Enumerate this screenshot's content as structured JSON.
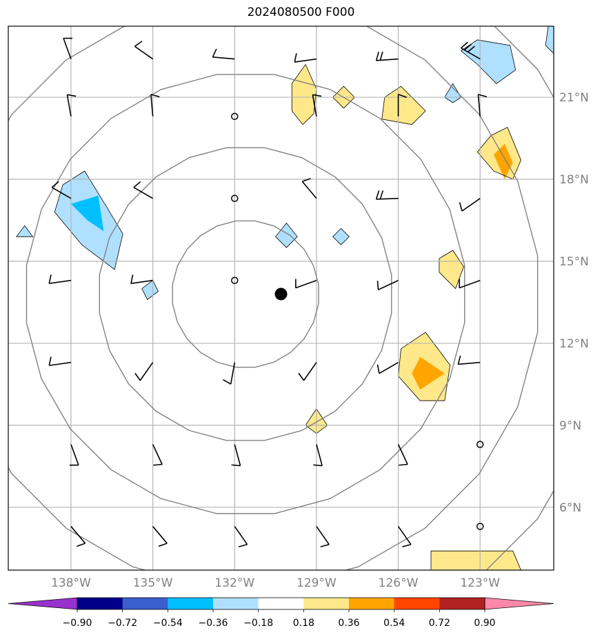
{
  "title": "2024080500 F000",
  "chart_data": {
    "type": "map",
    "title": "2024080500 F000",
    "lon_ticks": [
      "138°W",
      "135°W",
      "132°W",
      "129°W",
      "126°W",
      "123°W"
    ],
    "lon_values": [
      -138,
      -135,
      -132,
      -129,
      -126,
      -123
    ],
    "lat_ticks": [
      "21°N",
      "18°N",
      "15°N",
      "12°N",
      "9°N",
      "6°N"
    ],
    "lat_values": [
      21,
      18,
      15,
      12,
      9,
      6
    ],
    "lon_range": [
      -140.3,
      -120.3
    ],
    "lat_range": [
      3.7,
      23.6
    ],
    "grid": true,
    "storm_center": {
      "lon": -130.3,
      "lat": 13.8
    },
    "range_rings": [
      {
        "lon": -131.6,
        "lat": 13.8,
        "radius_deg": 2.7
      },
      {
        "lon": -131.6,
        "lat": 13.8,
        "radius_deg": 5.4
      },
      {
        "lon": -131.6,
        "lat": 13.8,
        "radius_deg": 8.1
      },
      {
        "lon": -131.6,
        "lat": 13.8,
        "radius_deg": 10.8
      },
      {
        "lon": -131.6,
        "lat": 13.8,
        "radius_deg": 13.5
      }
    ],
    "colorbar": {
      "levels": [
        -0.9,
        -0.72,
        -0.54,
        -0.36,
        -0.18,
        0.18,
        0.36,
        0.54,
        0.72,
        0.9
      ],
      "labels": [
        "−0.90",
        "−0.72",
        "−0.54",
        "−0.36",
        "−0.18",
        "0.18",
        "0.36",
        "0.54",
        "0.72",
        "0.90"
      ],
      "colors": [
        "#9932cc",
        "#00008b",
        "#3a5fcd",
        "#00bfff",
        "#b0e0ff",
        "#ffffff",
        "#ffe88a",
        "#ffa500",
        "#ff4500",
        "#b22222",
        "#ff88aa"
      ],
      "extend": "both"
    },
    "shaded_regions": [
      {
        "color": "#ffe88a",
        "points": [
          [
            -129.4,
            22.2
          ],
          [
            -129.0,
            21.3
          ],
          [
            -129.1,
            20.4
          ],
          [
            -129.5,
            20.0
          ],
          [
            -129.9,
            20.5
          ],
          [
            -129.9,
            21.5
          ]
        ]
      },
      {
        "color": "#ffe88a",
        "points": [
          [
            -128.0,
            21.4
          ],
          [
            -127.6,
            21.0
          ],
          [
            -128.0,
            20.6
          ],
          [
            -128.4,
            21.0
          ]
        ]
      },
      {
        "color": "#ffe88a",
        "points": [
          [
            -125.9,
            21.4
          ],
          [
            -125.0,
            20.5
          ],
          [
            -125.5,
            20.0
          ],
          [
            -126.6,
            20.2
          ],
          [
            -126.5,
            21.0
          ]
        ]
      },
      {
        "color": "#ffe88a",
        "points": [
          [
            -122.0,
            19.9
          ],
          [
            -121.5,
            18.7
          ],
          [
            -121.8,
            18.0
          ],
          [
            -122.5,
            18.3
          ],
          [
            -123.1,
            19.0
          ],
          [
            -122.6,
            19.6
          ]
        ]
      },
      {
        "color": "#ffa500",
        "points": [
          [
            -122.1,
            19.3
          ],
          [
            -121.8,
            18.6
          ],
          [
            -122.1,
            18.0
          ],
          [
            -122.5,
            18.9
          ]
        ]
      },
      {
        "color": "#ffe88a",
        "points": [
          [
            -124.0,
            15.4
          ],
          [
            -123.6,
            14.8
          ],
          [
            -123.9,
            14.0
          ],
          [
            -124.5,
            14.6
          ],
          [
            -124.5,
            15.1
          ]
        ]
      },
      {
        "color": "#ffe88a",
        "points": [
          [
            -125.0,
            12.4
          ],
          [
            -124.1,
            11.2
          ],
          [
            -124.3,
            9.9
          ],
          [
            -125.2,
            9.9
          ],
          [
            -126.0,
            10.8
          ],
          [
            -125.9,
            11.8
          ]
        ]
      },
      {
        "color": "#ffa500",
        "points": [
          [
            -125.2,
            11.5
          ],
          [
            -124.3,
            10.9
          ],
          [
            -125.2,
            10.3
          ],
          [
            -125.5,
            10.9
          ]
        ]
      },
      {
        "color": "#ffe88a",
        "points": [
          [
            -129.0,
            9.6
          ],
          [
            -128.6,
            9.0
          ],
          [
            -129.0,
            8.7
          ],
          [
            -129.4,
            9.0
          ]
        ]
      },
      {
        "color": "#ffe88a",
        "points": [
          [
            -124.8,
            4.4
          ],
          [
            -121.8,
            4.4
          ],
          [
            -121.5,
            3.7
          ],
          [
            -124.8,
            3.7
          ]
        ]
      },
      {
        "color": "#b0e0ff",
        "points": [
          [
            -137.5,
            18.3
          ],
          [
            -136.7,
            17.0
          ],
          [
            -136.1,
            16.0
          ],
          [
            -136.4,
            14.7
          ],
          [
            -137.6,
            15.6
          ],
          [
            -138.6,
            16.8
          ],
          [
            -138.3,
            17.8
          ]
        ]
      },
      {
        "color": "#00bfff",
        "points": [
          [
            -137.0,
            17.4
          ],
          [
            -136.8,
            16.1
          ],
          [
            -137.4,
            16.5
          ],
          [
            -138.0,
            17.1
          ]
        ]
      },
      {
        "color": "#b0e0ff",
        "points": [
          [
            -139.7,
            16.3
          ],
          [
            -139.4,
            15.9
          ],
          [
            -140.0,
            15.9
          ]
        ]
      },
      {
        "color": "#b0e0ff",
        "points": [
          [
            -135.0,
            14.3
          ],
          [
            -134.8,
            13.9
          ],
          [
            -135.2,
            13.6
          ],
          [
            -135.4,
            14.0
          ]
        ]
      },
      {
        "color": "#b0e0ff",
        "points": [
          [
            -130.1,
            16.4
          ],
          [
            -129.7,
            15.9
          ],
          [
            -130.1,
            15.5
          ],
          [
            -130.5,
            15.9
          ]
        ]
      },
      {
        "color": "#b0e0ff",
        "points": [
          [
            -128.1,
            16.2
          ],
          [
            -127.8,
            15.9
          ],
          [
            -128.1,
            15.6
          ],
          [
            -128.4,
            15.9
          ]
        ]
      },
      {
        "color": "#b0e0ff",
        "points": [
          [
            -124.0,
            21.5
          ],
          [
            -123.7,
            21.0
          ],
          [
            -124.0,
            20.8
          ],
          [
            -124.3,
            21.0
          ]
        ]
      },
      {
        "color": "#b0e0ff",
        "points": [
          [
            -123.1,
            23.1
          ],
          [
            -121.9,
            22.9
          ],
          [
            -121.7,
            22.0
          ],
          [
            -122.4,
            21.5
          ],
          [
            -123.1,
            22.2
          ],
          [
            -123.7,
            22.7
          ]
        ]
      },
      {
        "color": "#b0e0ff",
        "points": [
          [
            -120.5,
            23.6
          ],
          [
            -120.3,
            23.6
          ],
          [
            -120.3,
            22.6
          ],
          [
            -120.6,
            22.9
          ]
        ]
      }
    ],
    "wind_barbs_lon": [
      -138,
      -135,
      -132,
      -129,
      -126,
      -123
    ],
    "wind_barbs_lat": [
      22.4,
      20.3,
      17.3,
      14.3,
      11.3,
      8.3,
      5.3
    ]
  }
}
